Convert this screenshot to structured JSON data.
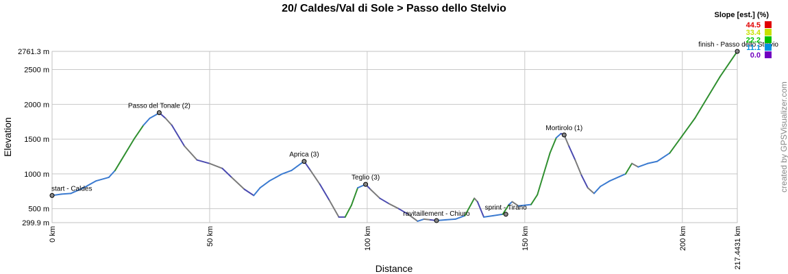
{
  "chart_data": {
    "type": "line",
    "title": "20/ Caldes/Val di Sole > Passo dello Stelvio",
    "xlabel": "Distance",
    "ylabel": "Elevation",
    "xlim": [
      0,
      217.4431
    ],
    "ylim": [
      299.9,
      2761.3
    ],
    "x_ticks": [
      {
        "value": 0,
        "label": "0 km"
      },
      {
        "value": 50,
        "label": "50 km"
      },
      {
        "value": 100,
        "label": "100 km"
      },
      {
        "value": 150,
        "label": "150 km"
      },
      {
        "value": 200,
        "label": "200 km"
      },
      {
        "value": 217.4431,
        "label": "217.4431 km"
      }
    ],
    "y_ticks": [
      {
        "value": 299.9,
        "label": "299.9 m"
      },
      {
        "value": 500,
        "label": "500 m"
      },
      {
        "value": 1000,
        "label": "1000 m"
      },
      {
        "value": 1500,
        "label": "1500 m"
      },
      {
        "value": 2000,
        "label": "2000 m"
      },
      {
        "value": 2500,
        "label": "2500 m"
      },
      {
        "value": 2761.3,
        "label": "2761.3 m"
      }
    ],
    "grid": true,
    "profile": {
      "x": [
        0,
        3,
        6,
        10,
        14,
        18,
        20,
        22,
        26,
        29,
        31,
        33,
        34,
        36,
        38,
        42,
        46,
        50,
        54,
        57,
        61,
        64,
        66,
        69,
        71,
        73,
        76,
        79,
        80,
        82,
        85,
        88,
        91,
        93,
        95,
        97,
        99.5,
        101,
        104,
        107,
        110,
        113,
        116,
        118,
        120,
        122,
        125,
        128,
        131,
        134,
        135,
        137,
        140,
        143,
        145,
        146,
        148,
        152,
        154,
        156,
        158,
        160,
        161.5,
        162.5,
        164,
        166,
        168,
        170,
        172,
        174,
        177,
        180,
        182,
        184,
        186,
        189,
        192,
        196,
        200,
        204,
        208,
        212,
        215,
        217.4431
      ],
      "y": [
        690,
        710,
        720,
        800,
        900,
        950,
        1050,
        1200,
        1500,
        1700,
        1800,
        1850,
        1880,
        1800,
        1700,
        1400,
        1200,
        1150,
        1080,
        950,
        780,
        690,
        800,
        900,
        950,
        1000,
        1050,
        1150,
        1180,
        1050,
        850,
        620,
        380,
        380,
        550,
        800,
        850,
        780,
        650,
        570,
        500,
        420,
        320,
        350,
        340,
        330,
        340,
        350,
        400,
        650,
        600,
        380,
        400,
        420,
        560,
        600,
        540,
        560,
        700,
        1000,
        1300,
        1520,
        1580,
        1560,
        1400,
        1200,
        980,
        800,
        720,
        820,
        900,
        960,
        1000,
        1150,
        1100,
        1150,
        1180,
        1300,
        1550,
        1800,
        2100,
        2400,
        2600,
        2761.3
      ]
    },
    "waypoints": [
      {
        "label": "start - Caldes",
        "x": 0,
        "y": 690
      },
      {
        "label": "Passo del Tonale (2)",
        "x": 34,
        "y": 1880
      },
      {
        "label": "Aprica (3)",
        "x": 80,
        "y": 1180
      },
      {
        "label": "Teglio (3)",
        "x": 99.5,
        "y": 850
      },
      {
        "label": "ravitaillement - Chiuro",
        "x": 122,
        "y": 330
      },
      {
        "label": "sprint - Tirano",
        "x": 144,
        "y": 420
      },
      {
        "label": "Mortirolo (1)",
        "x": 162.5,
        "y": 1560
      },
      {
        "label": "finish - Passo dello Stelvio",
        "x": 217.4431,
        "y": 2761.3
      }
    ],
    "legend": {
      "title": "Slope [est.] (%)",
      "placement": "top-right",
      "entries": [
        {
          "label": "44.5",
          "color": "#e00000"
        },
        {
          "label": "33.4",
          "color": "#c8e000"
        },
        {
          "label": "22.2",
          "color": "#00c000"
        },
        {
          "label": "11.1",
          "color": "#0090e0"
        },
        {
          "label": "0.0",
          "color": "#7000c0"
        }
      ]
    },
    "line_colors": [
      "#4a4ab0",
      "#7a7a7a",
      "#2f8f2f",
      "#3a7ad0"
    ]
  },
  "credit": "created by GPSVisualizer.com"
}
